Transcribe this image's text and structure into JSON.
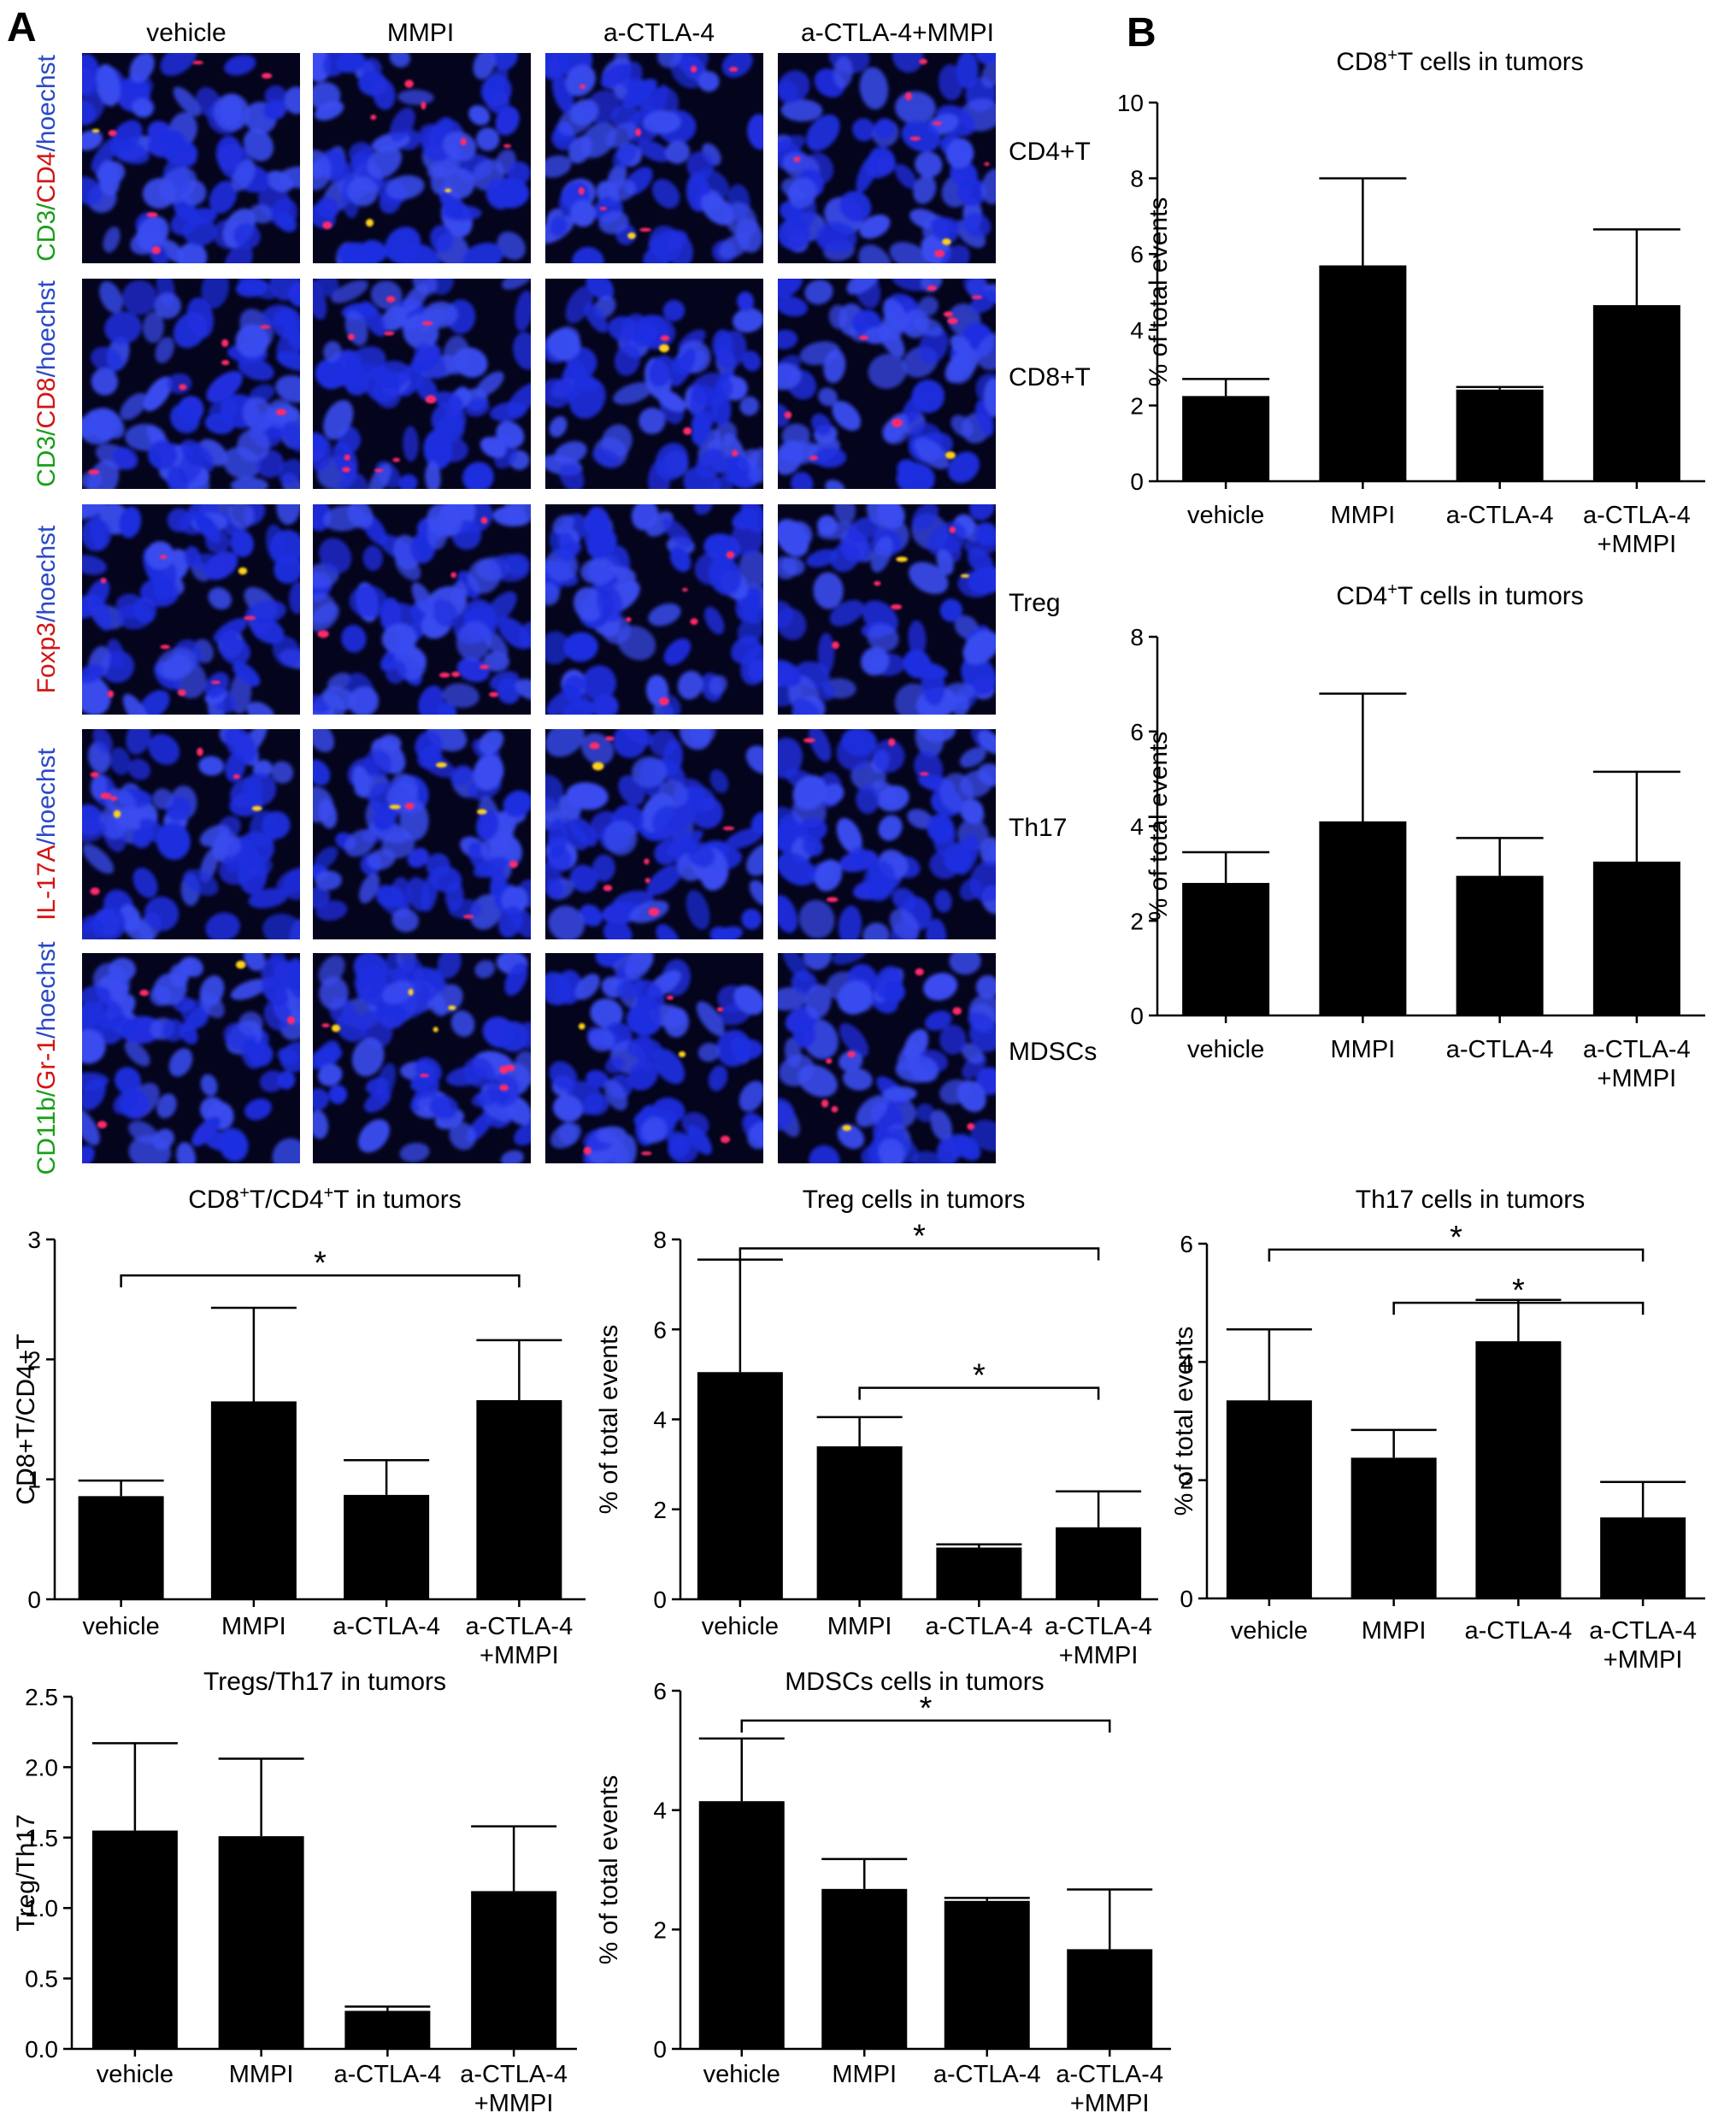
{
  "panel_letters": {
    "a": "A",
    "b": "B"
  },
  "micrograph": {
    "columns": [
      "vehicle",
      "MMPI",
      "a-CTLA-4",
      "a-CTLA-4+MMPI"
    ],
    "rows": [
      {
        "name": "CD4+T",
        "stain": [
          [
            "CD3",
            "#1a9e1a"
          ],
          [
            "/",
            "#1a9e1a"
          ],
          [
            "CD4",
            "#d21414"
          ],
          [
            "/hoechst",
            "#2a48c8"
          ]
        ]
      },
      {
        "name": "CD8+T",
        "stain": [
          [
            "CD3",
            "#1a9e1a"
          ],
          [
            "/",
            "#1a9e1a"
          ],
          [
            "CD8",
            "#d21414"
          ],
          [
            "/hoechst",
            "#2a48c8"
          ]
        ]
      },
      {
        "name": "Treg",
        "stain": [
          [
            "Foxp3",
            "#d21414"
          ],
          [
            "/hoechst",
            "#2a48c8"
          ]
        ]
      },
      {
        "name": "Th17",
        "stain": [
          [
            "IL-17A",
            "#d21414"
          ],
          [
            "/hoechst",
            "#2a48c8"
          ]
        ]
      },
      {
        "name": "MDSCs",
        "stain": [
          [
            "CD11b",
            "#1a9e1a"
          ],
          [
            "/",
            "#1a9e1a"
          ],
          [
            "Gr-1",
            "#d21414"
          ],
          [
            "/hoechst",
            "#2a48c8"
          ]
        ]
      }
    ],
    "colors": {
      "background": "#04041c",
      "nucleus": "#1f2ee0",
      "nucleus_light": "#3a4cf0",
      "marker": "#ff2a6a",
      "marker_yellow": "#ffd21e"
    }
  },
  "chart_data": [
    {
      "id": "cd8",
      "type": "bar",
      "title_parts": [
        [
          "CD8",
          ""
        ],
        [
          "+",
          "sup"
        ],
        [
          "T cells in tumors",
          ""
        ]
      ],
      "ylabel": "% of total events",
      "categories": [
        [
          "vehicle"
        ],
        [
          "MMPI"
        ],
        [
          "a-CTLA-4"
        ],
        [
          "a-CTLA-4",
          "+MMPI"
        ]
      ],
      "values": [
        2.25,
        5.7,
        2.42,
        4.65
      ],
      "errors": [
        0.45,
        2.3,
        0.07,
        2.0
      ],
      "ylim": [
        0,
        10
      ],
      "yticks": [
        0,
        2,
        4,
        6,
        8,
        10
      ],
      "ytick_labels": [
        "0",
        "2",
        "4",
        "6",
        "8",
        "10"
      ],
      "significance": []
    },
    {
      "id": "cd4",
      "type": "bar",
      "title_parts": [
        [
          "CD4",
          ""
        ],
        [
          "+",
          "sup"
        ],
        [
          "T cells in tumors",
          ""
        ]
      ],
      "ylabel": "% of total events",
      "categories": [
        [
          "vehicle"
        ],
        [
          "MMPI"
        ],
        [
          "a-CTLA-4"
        ],
        [
          "a-CTLA-4",
          "+MMPI"
        ]
      ],
      "values": [
        2.8,
        4.1,
        2.95,
        3.25
      ],
      "errors": [
        0.65,
        2.7,
        0.8,
        1.9
      ],
      "ylim": [
        0,
        8
      ],
      "yticks": [
        0,
        2,
        4,
        6,
        8
      ],
      "ytick_labels": [
        "0",
        "2",
        "4",
        "6",
        "8"
      ],
      "significance": []
    },
    {
      "id": "ratio",
      "type": "bar",
      "title_parts": [
        [
          "CD8",
          ""
        ],
        [
          "+",
          "sup"
        ],
        [
          "T/CD4",
          ""
        ],
        [
          "+",
          "sup"
        ],
        [
          "T in tumors",
          ""
        ]
      ],
      "ylabel": "CD8+T/CD4+T",
      "categories": [
        [
          "vehicle"
        ],
        [
          "MMPI"
        ],
        [
          "a-CTLA-4"
        ],
        [
          "a-CTLA-4",
          "+MMPI"
        ]
      ],
      "values": [
        0.86,
        1.65,
        0.87,
        1.66
      ],
      "errors": [
        0.13,
        0.78,
        0.29,
        0.5
      ],
      "ylim": [
        0,
        3
      ],
      "yticks": [
        0,
        1,
        2,
        3
      ],
      "ytick_labels": [
        "0",
        "1",
        "2",
        "3"
      ],
      "significance": [
        {
          "from": 0,
          "to": 3,
          "y": 2.7,
          "label": "*"
        }
      ]
    },
    {
      "id": "treg",
      "type": "bar",
      "title_parts": [
        [
          "Treg cells in tumors",
          ""
        ]
      ],
      "ylabel": "% of total events",
      "categories": [
        [
          "vehicle"
        ],
        [
          "MMPI"
        ],
        [
          "a-CTLA-4"
        ],
        [
          "a-CTLA-4",
          "+MMPI"
        ]
      ],
      "values": [
        5.05,
        3.4,
        1.15,
        1.6
      ],
      "errors": [
        2.5,
        0.65,
        0.07,
        0.8
      ],
      "ylim": [
        0,
        8
      ],
      "yticks": [
        0,
        2,
        4,
        6,
        8
      ],
      "ytick_labels": [
        "0",
        "2",
        "4",
        "6",
        "8"
      ],
      "significance": [
        {
          "from": 0,
          "to": 3,
          "y": 7.8,
          "label": "*"
        },
        {
          "from": 1,
          "to": 3,
          "y": 4.7,
          "label": "*"
        }
      ]
    },
    {
      "id": "th17",
      "type": "bar",
      "title_parts": [
        [
          "Th17 cells in tumors",
          ""
        ]
      ],
      "ylabel": "% of total events",
      "categories": [
        [
          "vehicle"
        ],
        [
          "MMPI"
        ],
        [
          "a-CTLA-4"
        ],
        [
          "a-CTLA-4",
          "+MMPI"
        ]
      ],
      "values": [
        3.35,
        2.38,
        4.35,
        1.37
      ],
      "errors": [
        1.2,
        0.47,
        0.7,
        0.6
      ],
      "ylim": [
        0,
        6
      ],
      "yticks": [
        0,
        2,
        4,
        6
      ],
      "ytick_labels": [
        "0",
        "2",
        "4",
        "6"
      ],
      "significance": [
        {
          "from": 0,
          "to": 3,
          "y": 5.9,
          "label": "*"
        },
        {
          "from": 1,
          "to": 3,
          "y": 5.0,
          "label": "*"
        }
      ]
    },
    {
      "id": "tregth17",
      "type": "bar",
      "title_parts": [
        [
          "Tregs/Th17 in tumors",
          ""
        ]
      ],
      "ylabel": "Treg/Th17",
      "categories": [
        [
          "vehicle"
        ],
        [
          "MMPI"
        ],
        [
          "a-CTLA-4"
        ],
        [
          "a-CTLA-4",
          "+MMPI"
        ]
      ],
      "values": [
        1.55,
        1.51,
        0.27,
        1.12
      ],
      "errors": [
        0.62,
        0.55,
        0.03,
        0.46
      ],
      "ylim": [
        0,
        2.5
      ],
      "yticks": [
        0,
        0.5,
        1.0,
        1.5,
        2.0,
        2.5
      ],
      "ytick_labels": [
        "0.0",
        "0.5",
        "1.0",
        "1.5",
        "2.0",
        "2.5"
      ],
      "significance": []
    },
    {
      "id": "mdsc",
      "type": "bar",
      "title_parts": [
        [
          "MDSCs cells in tumors",
          ""
        ]
      ],
      "ylabel": "% of total events",
      "categories": [
        [
          "vehicle"
        ],
        [
          "MMPI"
        ],
        [
          "a-CTLA-4"
        ],
        [
          "a-CTLA-4",
          "+MMPI"
        ]
      ],
      "values": [
        4.15,
        2.68,
        2.48,
        1.67
      ],
      "errors": [
        1.05,
        0.5,
        0.05,
        1.0
      ],
      "ylim": [
        0,
        6
      ],
      "yticks": [
        0,
        2,
        4,
        6
      ],
      "ytick_labels": [
        "0",
        "2",
        "4",
        "6"
      ],
      "significance": [
        {
          "from": 0,
          "to": 3,
          "y": 5.5,
          "label": "*"
        }
      ]
    }
  ]
}
